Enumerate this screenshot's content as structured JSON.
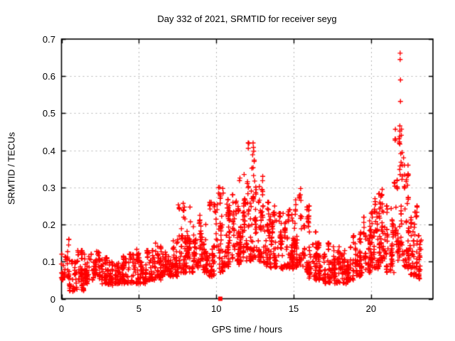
{
  "title": "Day 332 of 2021, SRMTID for receiver seyg",
  "chart_data": {
    "type": "scatter",
    "title": "Day 332 of 2021, SRMTID for receiver seyg",
    "xlabel": "GPS time / hours",
    "ylabel": "SRMTID / TECUs",
    "xlim": [
      0,
      24
    ],
    "ylim": [
      0,
      0.7
    ],
    "xticks": {
      "values": [
        0,
        5,
        10,
        15,
        20
      ],
      "labels": [
        "0",
        "5",
        "10",
        "15",
        "20"
      ]
    },
    "yticks": {
      "values": [
        0,
        0.1,
        0.2,
        0.3,
        0.4,
        0.5,
        0.6,
        0.7
      ],
      "labels": [
        "0",
        "0.1",
        "0.2",
        "0.3",
        "0.4",
        "0.5",
        "0.6",
        "0.7"
      ]
    },
    "grid": true,
    "grid_color": "#b4b4b4",
    "border_color": "#000000",
    "background": "#ffffff",
    "render_seed": 20211332,
    "series": [
      {
        "name": "srmtid-scatter",
        "marker": "plus",
        "color": "#ff0000",
        "note": "dense scatter described as half-hour bins [x_start, x_end, n_points, y_min, y_max]",
        "bins": [
          [
            0.0,
            0.5,
            40,
            0.05,
            0.16
          ],
          [
            0.5,
            1.0,
            40,
            0.02,
            0.1
          ],
          [
            1.0,
            1.5,
            45,
            0.02,
            0.13
          ],
          [
            1.5,
            2.0,
            40,
            0.04,
            0.12
          ],
          [
            2.0,
            2.5,
            45,
            0.05,
            0.13
          ],
          [
            2.5,
            3.0,
            45,
            0.04,
            0.11
          ],
          [
            3.0,
            3.5,
            45,
            0.035,
            0.1
          ],
          [
            3.5,
            4.0,
            45,
            0.04,
            0.11
          ],
          [
            4.0,
            4.5,
            45,
            0.04,
            0.12
          ],
          [
            4.5,
            5.0,
            45,
            0.04,
            0.14
          ],
          [
            5.0,
            5.5,
            45,
            0.04,
            0.12
          ],
          [
            5.5,
            6.0,
            45,
            0.05,
            0.13
          ],
          [
            6.0,
            6.5,
            45,
            0.05,
            0.15
          ],
          [
            6.5,
            7.0,
            45,
            0.06,
            0.15
          ],
          [
            7.0,
            7.5,
            50,
            0.06,
            0.18
          ],
          [
            7.5,
            8.0,
            50,
            0.07,
            0.26
          ],
          [
            8.0,
            8.5,
            55,
            0.07,
            0.25
          ],
          [
            8.5,
            9.0,
            55,
            0.08,
            0.23
          ],
          [
            9.0,
            9.5,
            50,
            0.07,
            0.2
          ],
          [
            9.5,
            10.0,
            50,
            0.06,
            0.26
          ],
          [
            10.0,
            10.5,
            50,
            0.07,
            0.3
          ],
          [
            10.5,
            11.0,
            55,
            0.08,
            0.28
          ],
          [
            11.0,
            11.5,
            55,
            0.09,
            0.28
          ],
          [
            11.5,
            12.0,
            60,
            0.1,
            0.34
          ],
          [
            12.0,
            12.5,
            60,
            0.1,
            0.42
          ],
          [
            12.5,
            13.0,
            60,
            0.1,
            0.33
          ],
          [
            13.0,
            13.5,
            55,
            0.08,
            0.26
          ],
          [
            13.5,
            14.0,
            50,
            0.08,
            0.25
          ],
          [
            14.0,
            14.5,
            50,
            0.08,
            0.23
          ],
          [
            14.5,
            15.0,
            55,
            0.08,
            0.24
          ],
          [
            15.0,
            15.5,
            55,
            0.08,
            0.3
          ],
          [
            15.5,
            16.0,
            55,
            0.07,
            0.25
          ],
          [
            16.0,
            16.5,
            50,
            0.05,
            0.18
          ],
          [
            16.5,
            17.0,
            50,
            0.05,
            0.15
          ],
          [
            17.0,
            17.5,
            50,
            0.04,
            0.15
          ],
          [
            17.5,
            18.0,
            50,
            0.04,
            0.14
          ],
          [
            18.0,
            18.5,
            50,
            0.04,
            0.13
          ],
          [
            18.5,
            19.0,
            50,
            0.05,
            0.17
          ],
          [
            19.0,
            19.5,
            50,
            0.06,
            0.18
          ],
          [
            19.5,
            20.0,
            55,
            0.07,
            0.22
          ],
          [
            20.0,
            20.5,
            55,
            0.08,
            0.27
          ],
          [
            20.5,
            21.0,
            55,
            0.08,
            0.3
          ],
          [
            21.0,
            21.5,
            55,
            0.07,
            0.25
          ],
          [
            21.5,
            22.0,
            60,
            0.1,
            0.47
          ],
          [
            22.0,
            22.5,
            60,
            0.08,
            0.36
          ],
          [
            22.5,
            23.0,
            55,
            0.06,
            0.25
          ],
          [
            23.0,
            23.25,
            25,
            0.05,
            0.17
          ]
        ],
        "outliers": [
          [
            21.88,
            0.662
          ],
          [
            21.88,
            0.645
          ],
          [
            21.9,
            0.59
          ],
          [
            21.9,
            0.532
          ],
          [
            21.86,
            0.466
          ],
          [
            21.86,
            0.452
          ],
          [
            21.92,
            0.391
          ],
          [
            21.94,
            0.368
          ],
          [
            12.38,
            0.42
          ],
          [
            12.4,
            0.408
          ],
          [
            12.42,
            0.398
          ],
          [
            12.35,
            0.388
          ],
          [
            12.45,
            0.37
          ],
          [
            12.3,
            0.352
          ],
          [
            22.1,
            0.38
          ],
          [
            22.15,
            0.36
          ],
          [
            15.45,
            0.297
          ],
          [
            15.43,
            0.28
          ],
          [
            15.47,
            0.265
          ],
          [
            10.42,
            0.297
          ],
          [
            10.45,
            0.285
          ],
          [
            20.72,
            0.295
          ],
          [
            20.7,
            0.28
          ],
          [
            9.68,
            0.26
          ],
          [
            7.55,
            0.253
          ],
          [
            8.3,
            0.247
          ],
          [
            11.8,
            0.335
          ]
        ]
      },
      {
        "name": "flagged-epoch",
        "marker": "filled-square",
        "color": "#ff0000",
        "points": [
          [
            10.26,
            0.0
          ]
        ]
      }
    ]
  }
}
